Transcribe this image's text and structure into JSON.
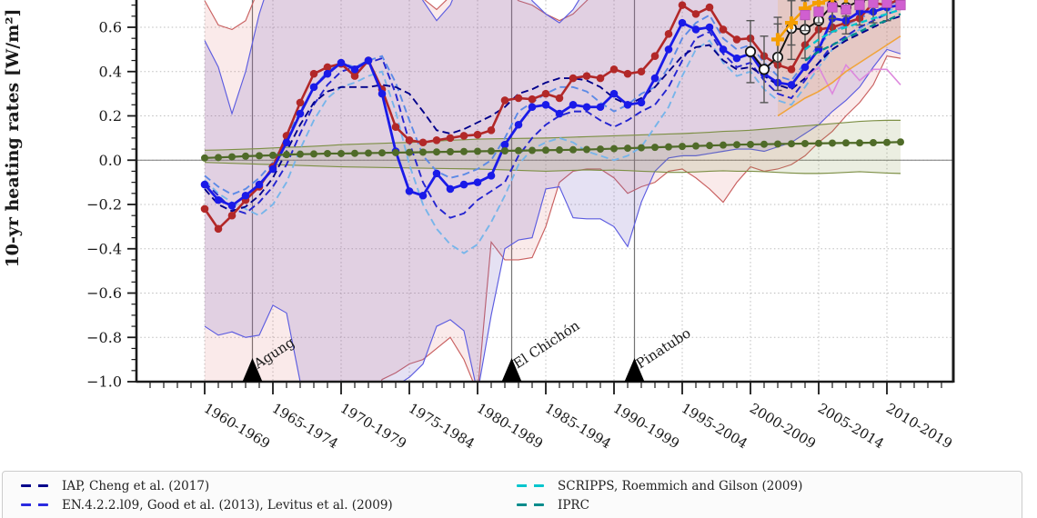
{
  "figure": {
    "ylabel": "10-yr heating rates [W/m²]",
    "background": "#ffffff"
  },
  "legend": {
    "entries": [
      {
        "label": "IAP, Cheng et al. (2017)",
        "color": "#00008b"
      },
      {
        "label": "EN.4.2.2.l09, Good et al. (2013), Levitus et al. (2009)",
        "color": "#2a2ae0"
      },
      {
        "label": "SCRIPPS, Roemmich and Gilson (2009)",
        "color": "#00c5cd"
      },
      {
        "label": "IPRC",
        "color": "#008b8b"
      }
    ]
  },
  "chart_data": {
    "type": "line",
    "title": "",
    "xlabel": "",
    "ylabel": "10-yr heating rates [W/m²]",
    "ylim": [
      -1.0,
      0.723
    ],
    "grid": true,
    "zero_line": true,
    "y_axis": {
      "tick_values": [
        0.6,
        0.4,
        0.2,
        0.0,
        -0.2,
        -0.4,
        -0.6,
        -0.8,
        -1.0
      ],
      "tick_labels": [
        "0.6",
        "0.4",
        "0.2",
        "0.0",
        "−0.2",
        "−0.4",
        "−0.6",
        "−0.8",
        "−1.0"
      ],
      "minor_step": 0.05
    },
    "x_axis": {
      "tick_years": [
        1960,
        1965,
        1970,
        1975,
        1980,
        1985,
        1990,
        1995,
        2000,
        2005,
        2010
      ],
      "tick_labels": [
        "1960-1969",
        "1965-1974",
        "1970-1979",
        "1975-1984",
        "1980-1989",
        "1985-1994",
        "1990-1999",
        "1995-2004",
        "2000-2009",
        "2005-2014",
        "2010-2019"
      ],
      "minor_years": [
        1956,
        2014
      ]
    },
    "volcanoes": [
      {
        "name": "Agung",
        "year": 1963.5
      },
      {
        "name": "El Chichón",
        "year": 1982.5
      },
      {
        "name": "Pinatubo",
        "year": 1991.5
      }
    ],
    "bands": [
      {
        "id": "red-model-range",
        "edge_color": "#c96060",
        "fill": "rgba(214,96,96,0.13)",
        "x_start": 1960,
        "upper": [
          0.72,
          0.61,
          0.59,
          0.63,
          0.78,
          0.85,
          0.9,
          0.95,
          1.0,
          1.0,
          1.0,
          1.0,
          1.0,
          0.95,
          0.9,
          0.85,
          0.73,
          0.68,
          0.74,
          0.85,
          0.9,
          0.85,
          0.78,
          0.72,
          0.7,
          0.66,
          0.63,
          0.66,
          0.72,
          0.78,
          0.82,
          0.8,
          0.76,
          0.8,
          0.85,
          0.9,
          0.95,
          1.0,
          1.0,
          0.95,
          0.9,
          0.88,
          0.86,
          0.88,
          0.9,
          0.92,
          0.95,
          0.95,
          0.95,
          0.95,
          0.95,
          0.95
        ],
        "lower": [
          -1.1,
          -1.15,
          -1.2,
          -1.25,
          -1.3,
          -1.25,
          -1.25,
          -1.3,
          -1.3,
          -1.3,
          -1.3,
          -1.25,
          -1.15,
          -0.99,
          -0.96,
          -0.92,
          -0.9,
          -0.85,
          -0.8,
          -0.9,
          -1.05,
          -0.37,
          -0.45,
          -0.45,
          -0.44,
          -0.3,
          -0.1,
          -0.05,
          -0.04,
          -0.04,
          -0.08,
          -0.15,
          -0.12,
          -0.1,
          -0.05,
          -0.04,
          -0.08,
          -0.13,
          -0.19,
          -0.1,
          -0.03,
          -0.05,
          -0.04,
          -0.02,
          0.02,
          0.08,
          0.13,
          0.2,
          0.26,
          0.34,
          0.47,
          0.46
        ]
      },
      {
        "id": "blue-model-range",
        "edge_color": "#5c5ce0",
        "fill": "rgba(123,104,196,0.20)",
        "x_start": 1960,
        "upper": [
          0.54,
          0.42,
          0.21,
          0.4,
          0.66,
          0.85,
          0.95,
          1.0,
          1.0,
          1.0,
          1.0,
          1.0,
          1.0,
          0.95,
          0.9,
          0.88,
          0.72,
          0.63,
          0.7,
          0.85,
          0.95,
          1.0,
          0.95,
          0.85,
          0.72,
          0.66,
          0.62,
          0.68,
          0.78,
          0.9,
          0.95,
          1.0,
          1.0,
          0.95,
          0.9,
          0.95,
          1.0,
          1.0,
          1.0,
          0.95,
          0.9,
          0.9,
          0.92,
          0.95,
          0.95,
          0.95,
          0.95,
          0.95,
          0.95,
          0.95,
          0.95,
          0.95
        ],
        "lower": [
          -0.75,
          -0.79,
          -0.775,
          -0.8,
          -0.79,
          -0.655,
          -0.69,
          -1.0,
          -1.15,
          -1.2,
          -1.2,
          -1.15,
          -1.1,
          -1.05,
          -1.02,
          -0.98,
          -0.92,
          -0.75,
          -0.72,
          -0.77,
          -1.05,
          -0.7,
          -0.4,
          -0.36,
          -0.35,
          -0.13,
          -0.12,
          -0.26,
          -0.265,
          -0.265,
          -0.3,
          -0.39,
          -0.19,
          -0.05,
          0.01,
          0.02,
          0.02,
          0.03,
          0.04,
          0.05,
          0.05,
          0.04,
          0.06,
          0.08,
          0.12,
          0.16,
          0.22,
          0.27,
          0.33,
          0.42,
          0.5,
          0.48
        ]
      },
      {
        "id": "green-control-range",
        "edge_color": "#7d8f45",
        "fill": "rgba(128,150,70,0.16)",
        "x_start": 1960,
        "upper": [
          0.045,
          0.046,
          0.048,
          0.05,
          0.052,
          0.055,
          0.058,
          0.06,
          0.063,
          0.066,
          0.07,
          0.072,
          0.074,
          0.076,
          0.078,
          0.08,
          0.083,
          0.086,
          0.09,
          0.092,
          0.095,
          0.096,
          0.097,
          0.098,
          0.099,
          0.1,
          0.102,
          0.104,
          0.106,
          0.108,
          0.11,
          0.112,
          0.114,
          0.116,
          0.118,
          0.12,
          0.123,
          0.126,
          0.13,
          0.132,
          0.135,
          0.14,
          0.145,
          0.15,
          0.155,
          0.16,
          0.165,
          0.17,
          0.175,
          0.178,
          0.18,
          0.18
        ],
        "lower": [
          -0.01,
          -0.012,
          -0.014,
          -0.016,
          -0.018,
          -0.02,
          -0.022,
          -0.024,
          -0.026,
          -0.028,
          -0.03,
          -0.031,
          -0.032,
          -0.033,
          -0.034,
          -0.035,
          -0.036,
          -0.037,
          -0.038,
          -0.039,
          -0.04,
          -0.042,
          -0.044,
          -0.046,
          -0.048,
          -0.05,
          -0.048,
          -0.046,
          -0.044,
          -0.046,
          -0.045,
          -0.047,
          -0.05,
          -0.052,
          -0.055,
          -0.055,
          -0.053,
          -0.05,
          -0.048,
          -0.05,
          -0.05,
          -0.052,
          -0.055,
          -0.058,
          -0.06,
          -0.06,
          -0.058,
          -0.055,
          -0.052,
          -0.055,
          -0.058,
          -0.06
        ]
      },
      {
        "id": "orange-obs-range",
        "edge_color": "none",
        "fill": "rgba(250,166,60,0.18)",
        "x_start": 2002,
        "upper": [
          0.95,
          0.95,
          0.95,
          0.95,
          0.95,
          0.95,
          0.95,
          0.95,
          0.95,
          0.95
        ],
        "lower": [
          0.2,
          0.24,
          0.28,
          0.31,
          0.35,
          0.4,
          0.44,
          0.48,
          0.52,
          0.56
        ]
      }
    ],
    "series": [
      {
        "id": "sky-dashed-product",
        "color": "#77b5ea",
        "width": 1.9,
        "dash": "8,4.5",
        "marker": null,
        "x_start": 1960,
        "values": [
          -0.09,
          -0.15,
          -0.19,
          -0.22,
          -0.25,
          -0.2,
          -0.1,
          0.05,
          0.18,
          0.28,
          0.33,
          0.35,
          0.38,
          0.4,
          0.22,
          -0.02,
          -0.2,
          -0.31,
          -0.38,
          -0.42,
          -0.38,
          -0.28,
          -0.16,
          -0.02,
          0.05,
          0.08,
          0.1,
          0.08,
          0.04,
          0.02,
          0.0,
          0.02,
          0.06,
          0.15,
          0.24,
          0.38,
          0.5,
          0.54,
          0.44,
          0.38,
          0.4,
          0.32,
          0.27,
          0.25,
          0.33,
          0.42,
          0.5,
          0.55,
          0.59,
          0.63,
          0.67,
          0.7
        ]
      },
      {
        "id": "cornflower-dashed-product",
        "color": "#5c8ae6",
        "width": 1.9,
        "dash": "8,4.5",
        "marker": null,
        "x_start": 1960,
        "values": [
          -0.07,
          -0.12,
          -0.155,
          -0.13,
          -0.08,
          -0.01,
          0.1,
          0.22,
          0.33,
          0.4,
          0.44,
          0.42,
          0.45,
          0.47,
          0.35,
          0.18,
          0.02,
          -0.05,
          -0.08,
          -0.065,
          -0.04,
          0.0,
          0.1,
          0.22,
          0.26,
          0.3,
          0.33,
          0.33,
          0.31,
          0.26,
          0.22,
          0.25,
          0.3,
          0.33,
          0.42,
          0.55,
          0.62,
          0.655,
          0.55,
          0.5,
          0.52,
          0.44,
          0.38,
          0.36,
          0.44,
          0.52,
          0.58,
          0.61,
          0.64,
          0.67,
          0.7,
          0.72
        ]
      },
      {
        "id": "en4-dashed",
        "color": "#2424d0",
        "width": 1.9,
        "dash": "8,4.5",
        "marker": null,
        "x_start": 1960,
        "values": [
          -0.1,
          -0.16,
          -0.22,
          -0.24,
          -0.19,
          -0.12,
          -0.02,
          0.12,
          0.25,
          0.34,
          0.4,
          0.42,
          0.44,
          0.46,
          0.3,
          0.08,
          -0.1,
          -0.21,
          -0.26,
          -0.24,
          -0.18,
          -0.14,
          -0.1,
          0.02,
          0.1,
          0.16,
          0.2,
          0.22,
          0.22,
          0.18,
          0.15,
          0.18,
          0.22,
          0.25,
          0.33,
          0.45,
          0.55,
          0.58,
          0.48,
          0.42,
          0.44,
          0.36,
          0.3,
          0.28,
          0.36,
          0.44,
          0.52,
          0.56,
          0.6,
          0.63,
          0.66,
          0.68
        ]
      },
      {
        "id": "iap-dashed",
        "color": "#00008b",
        "width": 1.9,
        "dash": "8,4.5",
        "marker": null,
        "x_start": 1960,
        "values": [
          -0.13,
          -0.2,
          -0.23,
          -0.21,
          -0.16,
          -0.08,
          0.04,
          0.16,
          0.26,
          0.31,
          0.33,
          0.33,
          0.33,
          0.34,
          0.33,
          0.3,
          0.22,
          0.135,
          0.12,
          0.14,
          0.17,
          0.2,
          0.24,
          0.3,
          0.32,
          0.35,
          0.37,
          0.37,
          0.36,
          0.33,
          0.28,
          0.25,
          0.28,
          0.33,
          0.4,
          0.47,
          0.51,
          0.52,
          0.45,
          0.41,
          0.42,
          0.38,
          0.34,
          0.32,
          0.37,
          0.44,
          0.5,
          0.54,
          0.57,
          0.6,
          0.63,
          0.65
        ]
      },
      {
        "id": "violet-thin-obs",
        "color": "#dd88dd",
        "width": 1.6,
        "dash": null,
        "marker": null,
        "x_start": 2004,
        "values": [
          0.37,
          0.42,
          0.3,
          0.43,
          0.36,
          0.41,
          0.41,
          0.34
        ]
      },
      {
        "id": "orange-thin-obs",
        "color": "#f0a43c",
        "width": 1.6,
        "dash": null,
        "marker": null,
        "x_start": 2002,
        "values": [
          0.2,
          0.24,
          0.28,
          0.31,
          0.35,
          0.4,
          0.44,
          0.48,
          0.52,
          0.56
        ]
      },
      {
        "id": "red-ensemble-mean",
        "color": "#b22828",
        "width": 2.6,
        "dash": null,
        "marker": "dot",
        "marker_size": 4.3,
        "x_start": 1960,
        "values": [
          -0.22,
          -0.31,
          -0.25,
          -0.18,
          -0.12,
          -0.03,
          0.11,
          0.26,
          0.39,
          0.42,
          0.435,
          0.38,
          0.45,
          0.32,
          0.15,
          0.09,
          0.08,
          0.09,
          0.1,
          0.11,
          0.115,
          0.135,
          0.27,
          0.28,
          0.275,
          0.3,
          0.28,
          0.37,
          0.38,
          0.37,
          0.41,
          0.39,
          0.4,
          0.47,
          0.57,
          0.7,
          0.66,
          0.69,
          0.59,
          0.545,
          0.55,
          0.47,
          0.43,
          0.41,
          0.52,
          0.59,
          0.6,
          0.62,
          0.64,
          0.71,
          0.7,
          0.73
        ]
      },
      {
        "id": "blue-ensemble-mean",
        "color": "#1a1ae8",
        "width": 2.8,
        "dash": null,
        "marker": "dot",
        "marker_size": 4.3,
        "x_start": 1960,
        "values": [
          -0.11,
          -0.18,
          -0.205,
          -0.16,
          -0.11,
          -0.04,
          0.08,
          0.21,
          0.33,
          0.39,
          0.44,
          0.41,
          0.45,
          0.3,
          0.04,
          -0.14,
          -0.16,
          -0.06,
          -0.13,
          -0.11,
          -0.1,
          -0.07,
          0.07,
          0.16,
          0.24,
          0.25,
          0.21,
          0.25,
          0.24,
          0.24,
          0.3,
          0.25,
          0.26,
          0.37,
          0.5,
          0.62,
          0.59,
          0.6,
          0.5,
          0.46,
          0.48,
          0.39,
          0.35,
          0.34,
          0.42,
          0.5,
          0.64,
          0.63,
          0.67,
          0.67,
          0.69,
          0.7
        ]
      },
      {
        "id": "green-control-mean",
        "color": "#4f6b28",
        "width": 2.2,
        "dash": null,
        "marker": "dot",
        "marker_size": 4.0,
        "x_start": 1960,
        "values": [
          0.01,
          0.012,
          0.015,
          0.018,
          0.02,
          0.022,
          0.025,
          0.027,
          0.028,
          0.03,
          0.03,
          0.031,
          0.032,
          0.033,
          0.034,
          0.035,
          0.036,
          0.037,
          0.038,
          0.039,
          0.04,
          0.041,
          0.042,
          0.043,
          0.044,
          0.045,
          0.046,
          0.047,
          0.048,
          0.05,
          0.052,
          0.054,
          0.056,
          0.058,
          0.06,
          0.062,
          0.064,
          0.066,
          0.068,
          0.07,
          0.071,
          0.072,
          0.073,
          0.074,
          0.075,
          0.076,
          0.077,
          0.078,
          0.078,
          0.079,
          0.08,
          0.082
        ]
      },
      {
        "id": "black-obs-composite",
        "color": "#111111",
        "width": 1.9,
        "dash": null,
        "marker": "open-circle",
        "marker_size": 5.2,
        "x_start": 2000,
        "values": [
          0.49,
          0.41,
          0.465,
          0.595,
          0.59,
          0.63,
          0.7,
          0.69,
          0.72,
          0.73,
          0.74
        ],
        "error": [
          0.14,
          0.15,
          0.15,
          0.14,
          0.13,
          0.12,
          0.12,
          0.12,
          0.11,
          0.11,
          0.11
        ]
      },
      {
        "id": "orange-obs-stars",
        "color": "#f59e00",
        "width": 2.5,
        "dash": null,
        "marker": "plus",
        "marker_size": 7,
        "x_start": 2002,
        "values": [
          0.545,
          0.62,
          0.685,
          0.71,
          0.73,
          0.74
        ],
        "error": [
          0.1,
          0.1,
          0.1,
          0.09,
          0.09,
          0.09
        ]
      },
      {
        "id": "scripps-dashed",
        "color": "#00c5cd",
        "width": 2.3,
        "dash": "7,4.5",
        "marker": null,
        "x_start": 2004,
        "values": [
          0.5,
          0.545,
          0.58,
          0.6,
          0.62,
          0.64,
          0.66,
          0.68
        ]
      },
      {
        "id": "iprc-dashed",
        "color": "#008b8b",
        "width": 2.3,
        "dash": "7,4.5",
        "marker": null,
        "x_start": 2004,
        "values": [
          0.45,
          0.49,
          0.52,
          0.55,
          0.58,
          0.61,
          0.63,
          0.66
        ]
      },
      {
        "id": "magenta-obs-squares",
        "color": "#d05fd0",
        "width": 0,
        "dash": null,
        "marker": "square",
        "marker_size": 5.2,
        "x_start": 2004,
        "values": [
          0.655,
          0.67,
          0.69,
          0.68,
          0.7,
          0.71,
          0.71,
          0.7
        ]
      }
    ]
  }
}
